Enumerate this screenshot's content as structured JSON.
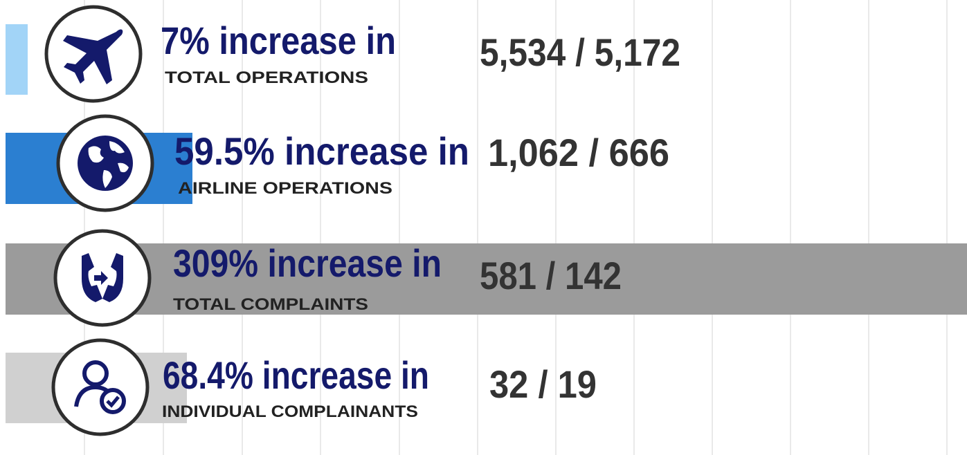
{
  "rows": [
    {
      "headline": "7% increase in",
      "label": "TOTAL OPERATIONS",
      "figures": "5,534 / 5,172"
    },
    {
      "headline": "59.5% increase in",
      "label": "AIRLINE OPERATIONS",
      "figures": "1,062 / 666"
    },
    {
      "headline": "309% increase in",
      "label": "TOTAL COMPLAINTS",
      "figures": "581 / 142"
    },
    {
      "headline": "68.4% increase in",
      "label": "INDIVIDUAL COMPLAINANTS",
      "figures": "32 / 19"
    }
  ]
}
